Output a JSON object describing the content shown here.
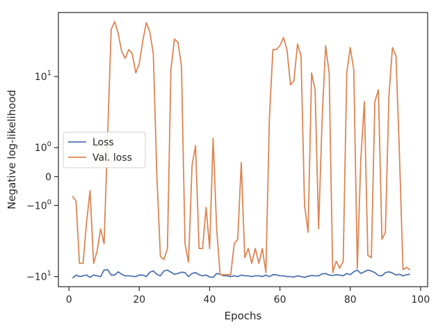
{
  "chart_data": {
    "type": "line",
    "title": "",
    "xlabel": "Epochs",
    "ylabel": "Negative log-likelihood",
    "xlim": [
      -3,
      102
    ],
    "yscale": "symlog",
    "ylim": [
      -13,
      50
    ],
    "x_ticks": [
      {
        "value": 0,
        "label": "0"
      },
      {
        "value": 20,
        "label": "20"
      },
      {
        "value": 40,
        "label": "40"
      },
      {
        "value": 60,
        "label": "60"
      },
      {
        "value": 80,
        "label": "80"
      },
      {
        "value": 100,
        "label": "100"
      }
    ],
    "y_ticks": [
      {
        "value": -10,
        "base": "−10",
        "exp": "1"
      },
      {
        "value": -1,
        "base": "−10",
        "exp": "0"
      },
      {
        "value": 0,
        "base": "0",
        "exp": ""
      },
      {
        "value": 1,
        "base": "10",
        "exp": "0"
      },
      {
        "value": 10,
        "base": "10",
        "exp": "1"
      }
    ],
    "grid": false,
    "legend_position": "center-left",
    "x": [
      1,
      2,
      3,
      4,
      5,
      6,
      7,
      8,
      9,
      10,
      11,
      12,
      13,
      14,
      15,
      16,
      17,
      18,
      19,
      20,
      21,
      22,
      23,
      24,
      25,
      26,
      27,
      28,
      29,
      30,
      31,
      32,
      33,
      34,
      35,
      36,
      37,
      38,
      39,
      40,
      41,
      42,
      43,
      44,
      45,
      46,
      47,
      48,
      49,
      50,
      51,
      52,
      53,
      54,
      55,
      56,
      57,
      58,
      59,
      60,
      61,
      62,
      63,
      64,
      65,
      66,
      67,
      68,
      69,
      70,
      71,
      72,
      73,
      74,
      75,
      76,
      77,
      78,
      79,
      80,
      81,
      82,
      83,
      84,
      85,
      86,
      87,
      88,
      89,
      90,
      91,
      92,
      93,
      94,
      95,
      96,
      97
    ],
    "series": [
      {
        "name": "Loss",
        "color": "#4c72b0",
        "values": [
          -10.4,
          -9.6,
          -10.0,
          -9.8,
          -9.6,
          -10.2,
          -9.6,
          -9.8,
          -10.0,
          -8.4,
          -8.3,
          -9.6,
          -9.6,
          -8.8,
          -9.4,
          -9.8,
          -9.8,
          -9.9,
          -10.0,
          -9.6,
          -9.6,
          -10.0,
          -8.9,
          -8.6,
          -9.4,
          -9.8,
          -8.6,
          -8.4,
          -8.9,
          -9.4,
          -9.2,
          -8.9,
          -9.0,
          -10.0,
          -9.2,
          -9.0,
          -9.5,
          -9.8,
          -9.6,
          -10.1,
          -10.2,
          -9.2,
          -9.4,
          -9.8,
          -9.8,
          -10.0,
          -9.8,
          -10.0,
          -9.6,
          -9.8,
          -9.8,
          -10.0,
          -9.8,
          -9.8,
          -10.0,
          -9.6,
          -10.0,
          -9.5,
          -9.5,
          -9.8,
          -9.8,
          -10.0,
          -10.0,
          -10.1,
          -9.8,
          -10.0,
          -10.2,
          -9.9,
          -9.7,
          -9.8,
          -9.8,
          -9.3,
          -9.2,
          -9.6,
          -9.7,
          -9.5,
          -9.6,
          -9.8,
          -9.2,
          -9.5,
          -8.8,
          -8.4,
          -9.2,
          -8.8,
          -8.4,
          -8.6,
          -9.0,
          -9.7,
          -9.8,
          -9.0,
          -8.8,
          -9.1,
          -9.6,
          -9.4,
          -9.8,
          -9.5,
          -9.4
        ]
      },
      {
        "name": "Val. loss",
        "color": "#dd8452",
        "values": [
          -0.6,
          -0.8,
          -7.0,
          -7.0,
          -2.0,
          -0.4,
          -7.0,
          -5.0,
          -2.5,
          -4.0,
          1.7,
          33,
          40,
          30,
          19,
          16,
          20,
          18,
          11,
          14,
          25,
          39,
          31,
          18,
          0.0,
          -5.8,
          -6.3,
          -4.6,
          12,
          26,
          24,
          13,
          -4.0,
          -6.8,
          0.3,
          1.1,
          -4.6,
          -4.6,
          -1.1,
          -4.6,
          1.5,
          -2.5,
          -9.5,
          -9.5,
          -9.5,
          -9.5,
          -4.0,
          -3.5,
          0.4,
          -6.0,
          -4.6,
          -7.0,
          -4.6,
          -7.0,
          -4.6,
          -9.0,
          3.0,
          20,
          20,
          22,
          27,
          20,
          8,
          9,
          23,
          17,
          -1.0,
          -2.8,
          11,
          7,
          -2.5,
          3.0,
          22,
          11,
          -9.0,
          -6.6,
          -8.0,
          -6.6,
          11,
          21,
          12,
          -8.0,
          0.5,
          5.0,
          -5.6,
          -6.0,
          5.0,
          7.0,
          -3.5,
          -2.8,
          6.0,
          21,
          17,
          0.7,
          -8.3,
          -7.8,
          -8.4
        ]
      }
    ]
  }
}
